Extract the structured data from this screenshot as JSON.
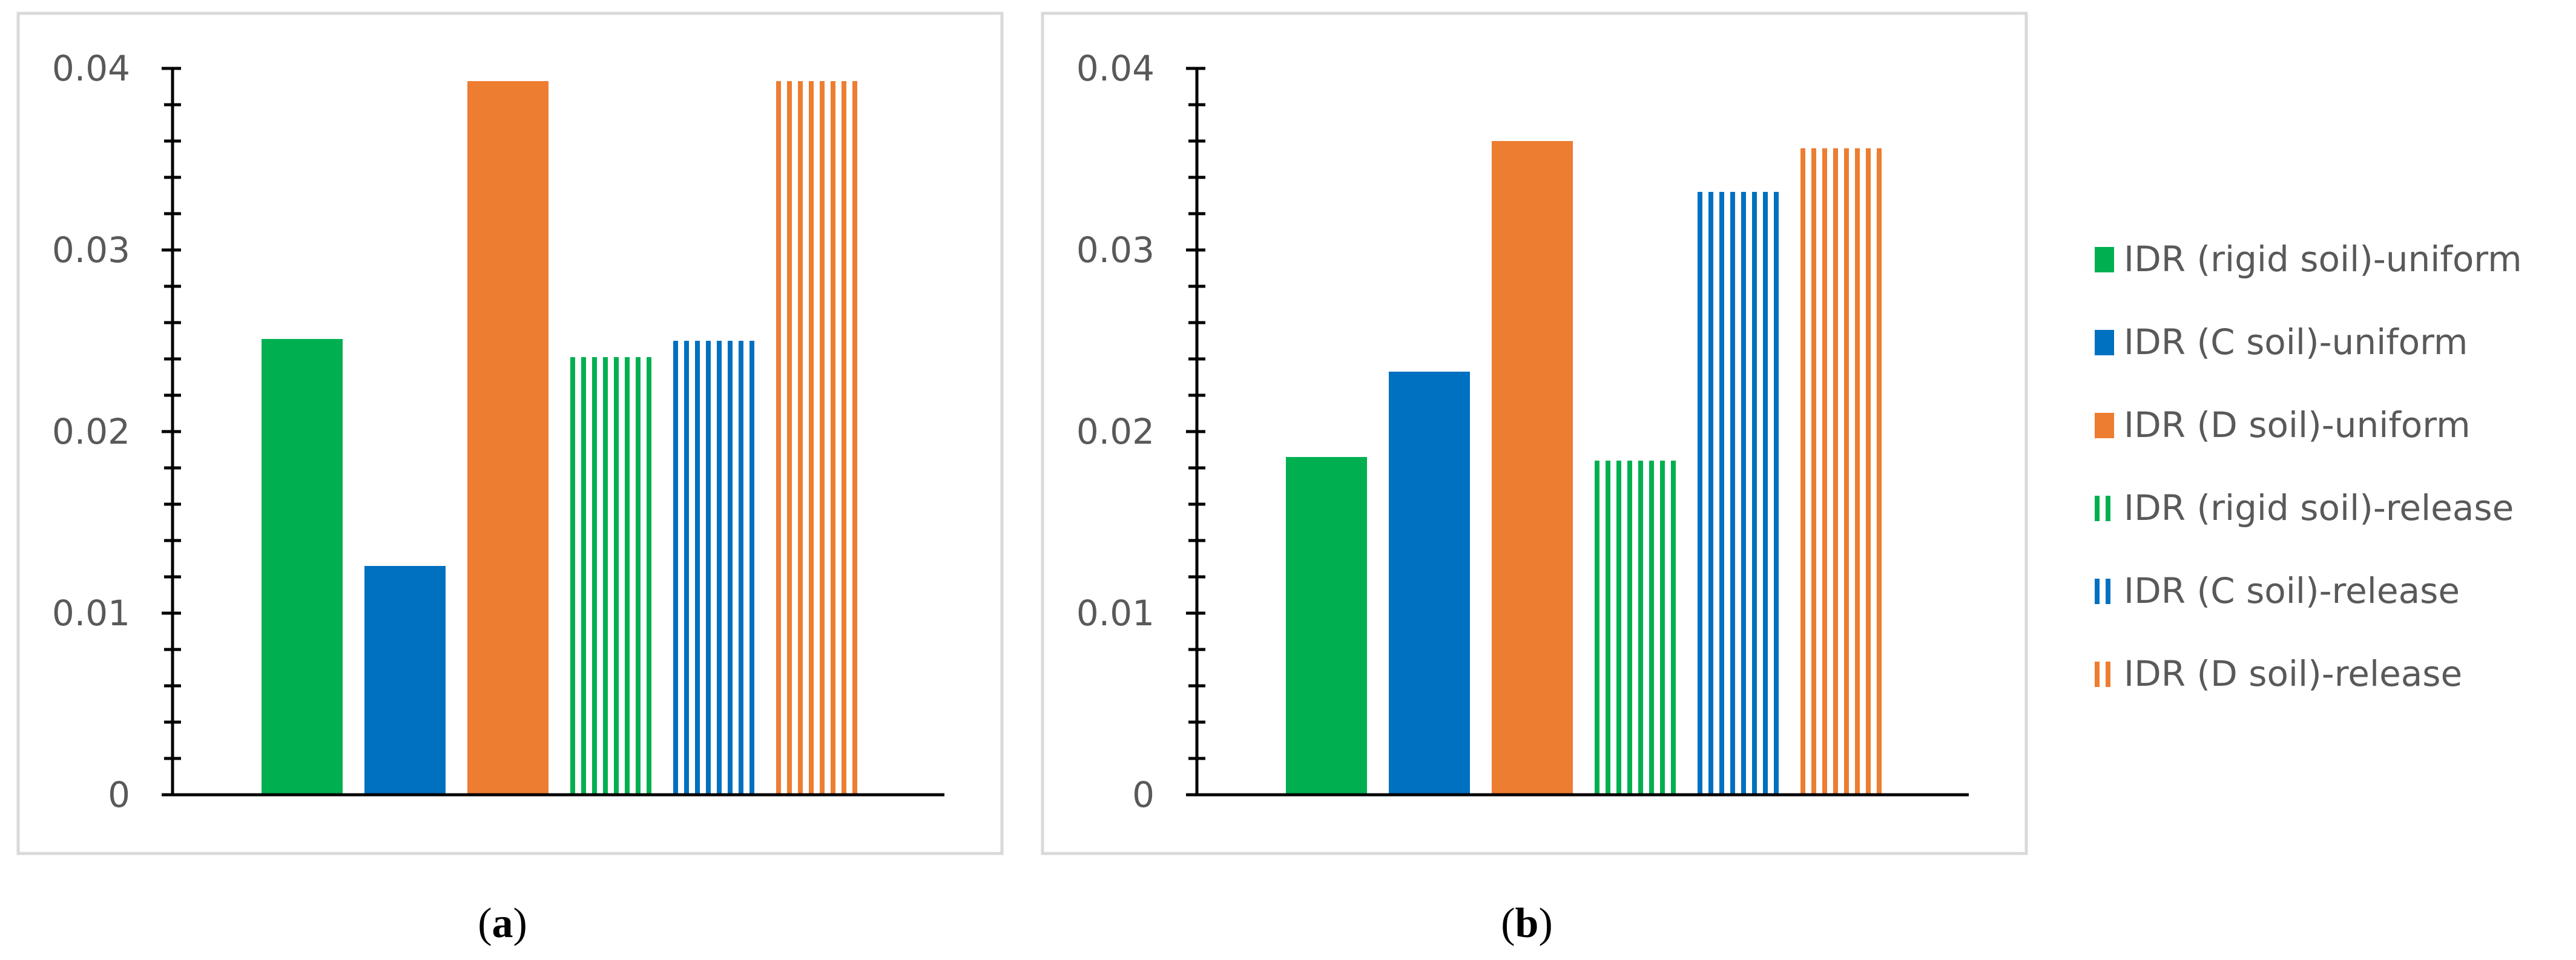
{
  "colors": {
    "green": "#00b050",
    "blue": "#0070c0",
    "orange": "#ed7d31",
    "axis": "#000000",
    "frame": "#d9d9d9",
    "tick_text": "#595959"
  },
  "legend": [
    {
      "label": "IDR (rigid soil)-uniform",
      "color": "green",
      "pattern": "solid"
    },
    {
      "label": "IDR (C soil)-uniform",
      "color": "blue",
      "pattern": "solid"
    },
    {
      "label": "IDR (D soil)-uniform",
      "color": "orange",
      "pattern": "solid"
    },
    {
      "label": "IDR (rigid soil)-release",
      "color": "green",
      "pattern": "striped"
    },
    {
      "label": "IDR (C soil)-release",
      "color": "blue",
      "pattern": "striped"
    },
    {
      "label": "IDR (D soil)-release",
      "color": "orange",
      "pattern": "striped"
    }
  ],
  "captions": [
    {
      "open": "(",
      "letter": "a",
      "close": ")"
    },
    {
      "open": "(",
      "letter": "b",
      "close": ")"
    }
  ],
  "chart_data": [
    {
      "type": "bar",
      "panel": "a",
      "series": [
        {
          "name": "IDR (rigid soil)-uniform",
          "values": [
            0.0251
          ]
        },
        {
          "name": "IDR (C soil)-uniform",
          "values": [
            0.0126
          ]
        },
        {
          "name": "IDR (D soil)-uniform",
          "values": [
            0.0393
          ]
        },
        {
          "name": "IDR (rigid soil)-release",
          "values": [
            0.0241
          ]
        },
        {
          "name": "IDR (C soil)-release",
          "values": [
            0.025
          ]
        },
        {
          "name": "IDR (D soil)-release",
          "values": [
            0.0393
          ]
        }
      ],
      "yticks": [
        "0",
        "0.01",
        "0.02",
        "0.03",
        "0.04"
      ],
      "ylim": [
        0,
        0.04
      ],
      "xlabel": "",
      "ylabel": "",
      "title": "",
      "grid": false
    },
    {
      "type": "bar",
      "panel": "b",
      "series": [
        {
          "name": "IDR (rigid soil)-uniform",
          "values": [
            0.0186
          ]
        },
        {
          "name": "IDR (C soil)-uniform",
          "values": [
            0.0233
          ]
        },
        {
          "name": "IDR (D soil)-uniform",
          "values": [
            0.036
          ]
        },
        {
          "name": "IDR (rigid soil)-release",
          "values": [
            0.0184
          ]
        },
        {
          "name": "IDR (C soil)-release",
          "values": [
            0.0332
          ]
        },
        {
          "name": "IDR (D soil)-release",
          "values": [
            0.0356
          ]
        }
      ],
      "yticks": [
        "0",
        "0.01",
        "0.02",
        "0.03",
        "0.04"
      ],
      "ylim": [
        0,
        0.04
      ],
      "xlabel": "",
      "ylabel": "",
      "title": "",
      "grid": false
    }
  ]
}
